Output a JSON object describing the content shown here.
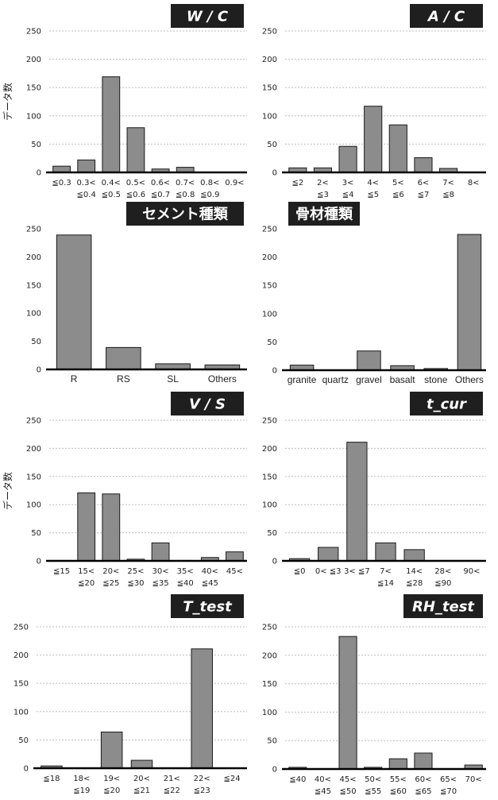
{
  "y_axis_label": "データ数",
  "chart_data": [
    {
      "type": "bar",
      "title": "W/C",
      "categories": [
        [
          "≦0.3"
        ],
        [
          "0.3<",
          "≦0.4"
        ],
        [
          "0.4<",
          "≦0.5"
        ],
        [
          "0.5<",
          "≦0.6"
        ],
        [
          "0.6<",
          "≦0.7"
        ],
        [
          "0.7<",
          "≦0.8"
        ],
        [
          "0.8<",
          "≦0.9"
        ],
        [
          "0.9<"
        ]
      ],
      "values": [
        11,
        22,
        169,
        79,
        6,
        9,
        0,
        0
      ],
      "yticks": [
        0,
        50,
        100,
        150,
        200,
        250
      ],
      "ylim": [
        0,
        250
      ],
      "grid": true,
      "title_position": "top-right"
    },
    {
      "type": "bar",
      "title": "A/C",
      "categories": [
        [
          "≦2"
        ],
        [
          "2<",
          "≦3"
        ],
        [
          "3<",
          "≦4"
        ],
        [
          "4<",
          "≦5"
        ],
        [
          "5<",
          "≦6"
        ],
        [
          "6<",
          "≦7"
        ],
        [
          "7<",
          "≦8"
        ],
        [
          "8<"
        ]
      ],
      "values": [
        8,
        8,
        46,
        117,
        84,
        26,
        7,
        0
      ],
      "yticks": [
        0,
        50,
        100,
        150,
        200,
        250
      ],
      "ylim": [
        0,
        250
      ],
      "grid": true,
      "title_position": "top-right"
    },
    {
      "type": "bar",
      "title": "セメント種類",
      "categories": [
        [
          "R"
        ],
        [
          "RS"
        ],
        [
          "SL"
        ],
        [
          "Others"
        ]
      ],
      "values": [
        239,
        39,
        10,
        8
      ],
      "yticks": [
        0,
        50,
        100,
        150,
        200,
        250
      ],
      "ylim": [
        0,
        250
      ],
      "grid": false,
      "title_position": "top-right"
    },
    {
      "type": "bar",
      "title": "骨材種類",
      "categories": [
        [
          "granite"
        ],
        [
          "quartz"
        ],
        [
          "gravel"
        ],
        [
          "basalt"
        ],
        [
          "stone"
        ],
        [
          "Others"
        ]
      ],
      "values": [
        9,
        0,
        34,
        8,
        3,
        240
      ],
      "yticks": [
        0,
        50,
        100,
        150,
        200,
        250
      ],
      "ylim": [
        0,
        250
      ],
      "grid": false,
      "title_position": "top-left"
    },
    {
      "type": "bar",
      "title": "V/S",
      "categories": [
        [
          "≦15"
        ],
        [
          "15<",
          "≦20"
        ],
        [
          "20<",
          "≦25"
        ],
        [
          "25<",
          "≦30"
        ],
        [
          "30<",
          "≦35"
        ],
        [
          "35<",
          "≦40"
        ],
        [
          "40<",
          "≦45"
        ],
        [
          "45<"
        ]
      ],
      "values": [
        0,
        121,
        119,
        3,
        32,
        0,
        6,
        16
      ],
      "yticks": [
        0,
        50,
        100,
        150,
        200,
        250
      ],
      "ylim": [
        0,
        250
      ],
      "grid": true,
      "title_position": "top-right"
    },
    {
      "type": "bar",
      "title": "t_cur",
      "categories": [
        [
          "≦0"
        ],
        [
          "0< ≦3"
        ],
        [
          "3< ≦7"
        ],
        [
          "7<",
          "≦14"
        ],
        [
          "14<",
          "≦28"
        ],
        [
          "28<",
          "≦90"
        ],
        [
          "90<"
        ]
      ],
      "values": [
        4,
        24,
        211,
        32,
        20,
        0,
        0
      ],
      "yticks": [
        0,
        50,
        100,
        150,
        200,
        250
      ],
      "ylim": [
        0,
        250
      ],
      "grid": true,
      "title_position": "top-right"
    },
    {
      "type": "bar",
      "title": "T_test",
      "categories": [
        [
          "≦18"
        ],
        [
          "18<",
          "≦19"
        ],
        [
          "19<",
          "≦20"
        ],
        [
          "20<",
          "≦21"
        ],
        [
          "21<",
          "≦22"
        ],
        [
          "22<",
          "≦23"
        ],
        [
          "≦24"
        ]
      ],
      "values": [
        4,
        0,
        64,
        14,
        0,
        211,
        0
      ],
      "yticks": [
        0,
        50,
        100,
        150,
        200,
        250
      ],
      "ylim": [
        0,
        250
      ],
      "grid": true,
      "title_position": "top-right"
    },
    {
      "type": "bar",
      "title": "RH_test",
      "categories": [
        [
          "≦40"
        ],
        [
          "40<",
          "≦45"
        ],
        [
          "45<",
          "≦50"
        ],
        [
          "50<",
          "≦55"
        ],
        [
          "55<",
          "≦60"
        ],
        [
          "60<",
          "≦65"
        ],
        [
          "65<",
          "≦70"
        ],
        [
          "70<"
        ]
      ],
      "values": [
        3,
        0,
        233,
        3,
        18,
        28,
        0,
        7
      ],
      "yticks": [
        0,
        50,
        100,
        150,
        200,
        250
      ],
      "ylim": [
        0,
        250
      ],
      "grid": true,
      "title_position": "top-right"
    }
  ],
  "colors": {
    "bar_fill": "#8c8c8c",
    "bar_stroke": "#1a1a1a",
    "title_bg": "#1f1f1f",
    "title_text": "#ffffff",
    "gridline": "#bdbdbd",
    "axis": "#000000"
  }
}
